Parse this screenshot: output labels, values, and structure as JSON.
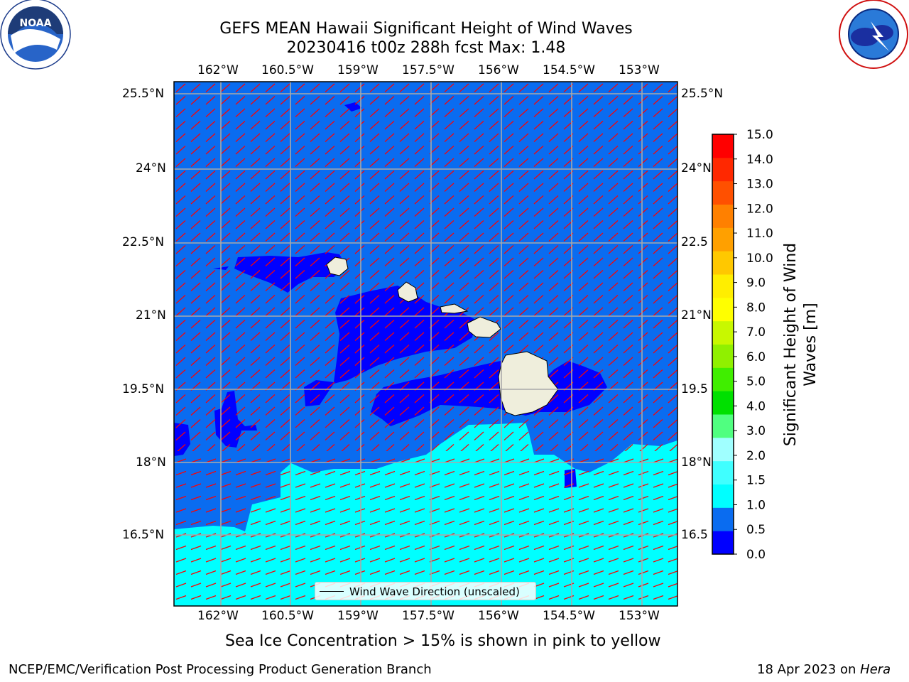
{
  "title": {
    "line1": "GEFS MEAN Hawaii Significant Height of Wind Waves",
    "line2": "20230416 t00z 288h fcst   Max: 1.48"
  },
  "logos": {
    "noaa": {
      "icon": "noaa-logo",
      "text": "NOAA",
      "ring_text": "NATIONAL OCEANIC AND ATMOSPHERIC ADMINISTRATION · U.S. DEPARTMENT OF COMMERCE"
    },
    "nws": {
      "icon": "nws-logo",
      "ring_text": "NATIONAL WEATHER SERVICE"
    }
  },
  "axes": {
    "lon_ticks": [
      "162°W",
      "160.5°W",
      "159°W",
      "157.5°W",
      "156°W",
      "154.5°W",
      "153°W"
    ],
    "lat_ticks_left": [
      "25.5°N",
      "24°N",
      "22.5°N",
      "21°N",
      "19.5°N",
      "18°N",
      "16.5°N"
    ],
    "lat_ticks_right": [
      "25.5°N",
      "24°N",
      "22.5",
      "21°N",
      "19.5",
      "18°N",
      "16.5"
    ]
  },
  "colorbar": {
    "label": "Significant Height of Wind Waves [m]",
    "ticks": [
      "0.0",
      "0.5",
      "1.0",
      "1.5",
      "2.0",
      "3.0",
      "4.0",
      "5.0",
      "6.0",
      "7.0",
      "8.0",
      "9.0",
      "10.0",
      "11.0",
      "12.0",
      "13.0",
      "14.0",
      "15.0"
    ],
    "colors": [
      "#0000ff",
      "#0a6cf0",
      "#00ffff",
      "#40ffff",
      "#a0ffff",
      "#50ff80",
      "#00e000",
      "#40ee00",
      "#90f000",
      "#c8f800",
      "#ffff00",
      "#ffee00",
      "#ffc800",
      "#ffa000",
      "#ff8000",
      "#ff5000",
      "#ff2800",
      "#ff0000"
    ]
  },
  "legend": {
    "label": "Wind Wave Direction (unscaled)"
  },
  "chart_data": {
    "type": "heatmap",
    "title": "GEFS MEAN Hawaii Significant Height of Wind Waves",
    "subtitle": "20230416 t00z 288h fcst   Max: 1.48",
    "lon_range": [
      -163,
      -152
    ],
    "lat_range": [
      15.3,
      25.7
    ],
    "value_range": [
      0,
      15
    ],
    "units": "m",
    "max": 1.48,
    "grid": true,
    "legend_placement": "bottom-center",
    "colors": {
      "low": "#0000ff",
      "mid": "#0a6cf0",
      "high": "#00ffff",
      "arrows": "#ff0000",
      "land": "#efeedc"
    }
  },
  "sub_caption": "Sea Ice Concentration > 15% is shown in pink to yellow",
  "footer": {
    "left": "NCEP/EMC/Verification Post Processing Product Generation Branch",
    "date": "18 Apr 2023 on ",
    "machine": "Hera"
  }
}
